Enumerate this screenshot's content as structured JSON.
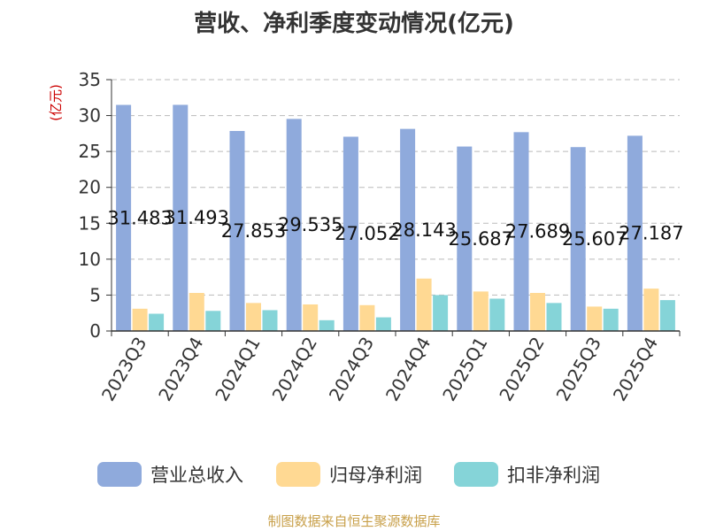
{
  "chart_data": {
    "type": "bar",
    "title": "营收、净利季度变动情况(亿元)",
    "ylabel": "(亿元)",
    "ylim": [
      0,
      35
    ],
    "yticks": [
      0,
      5,
      10,
      15,
      20,
      25,
      30,
      35
    ],
    "grid": true,
    "legend_position": "bottom",
    "categories": [
      "2023Q3",
      "2023Q4",
      "2024Q1",
      "2024Q2",
      "2024Q3",
      "2024Q4",
      "2025Q1",
      "2025Q2",
      "2025Q3",
      "2025Q4"
    ],
    "series": [
      {
        "name": "营业总收入",
        "color": "#8faadc",
        "values": [
          31.483,
          31.493,
          27.853,
          29.535,
          27.052,
          28.143,
          25.687,
          27.689,
          25.607,
          27.187
        ],
        "labels": [
          "31.483",
          "31.493",
          "27.853",
          "29.535",
          "27.052",
          "28.143",
          "25.687",
          "27.689",
          "25.607",
          "27.187"
        ]
      },
      {
        "name": "归母净利润",
        "color": "#ffd993",
        "values": [
          3.1,
          5.3,
          3.9,
          3.7,
          3.6,
          7.3,
          5.5,
          5.3,
          3.4,
          5.9
        ]
      },
      {
        "name": "扣非净利润",
        "color": "#85d4d8",
        "values": [
          2.4,
          2.8,
          2.9,
          1.5,
          1.9,
          5.0,
          4.5,
          3.9,
          3.1,
          4.3
        ]
      }
    ]
  },
  "source": "制图数据来自恒生聚源数据库",
  "colors": {
    "title": "#333333",
    "axis": "#333333",
    "grid": "#bbbbbb",
    "ylabel": "#cc0000",
    "source": "#c8a04a"
  }
}
